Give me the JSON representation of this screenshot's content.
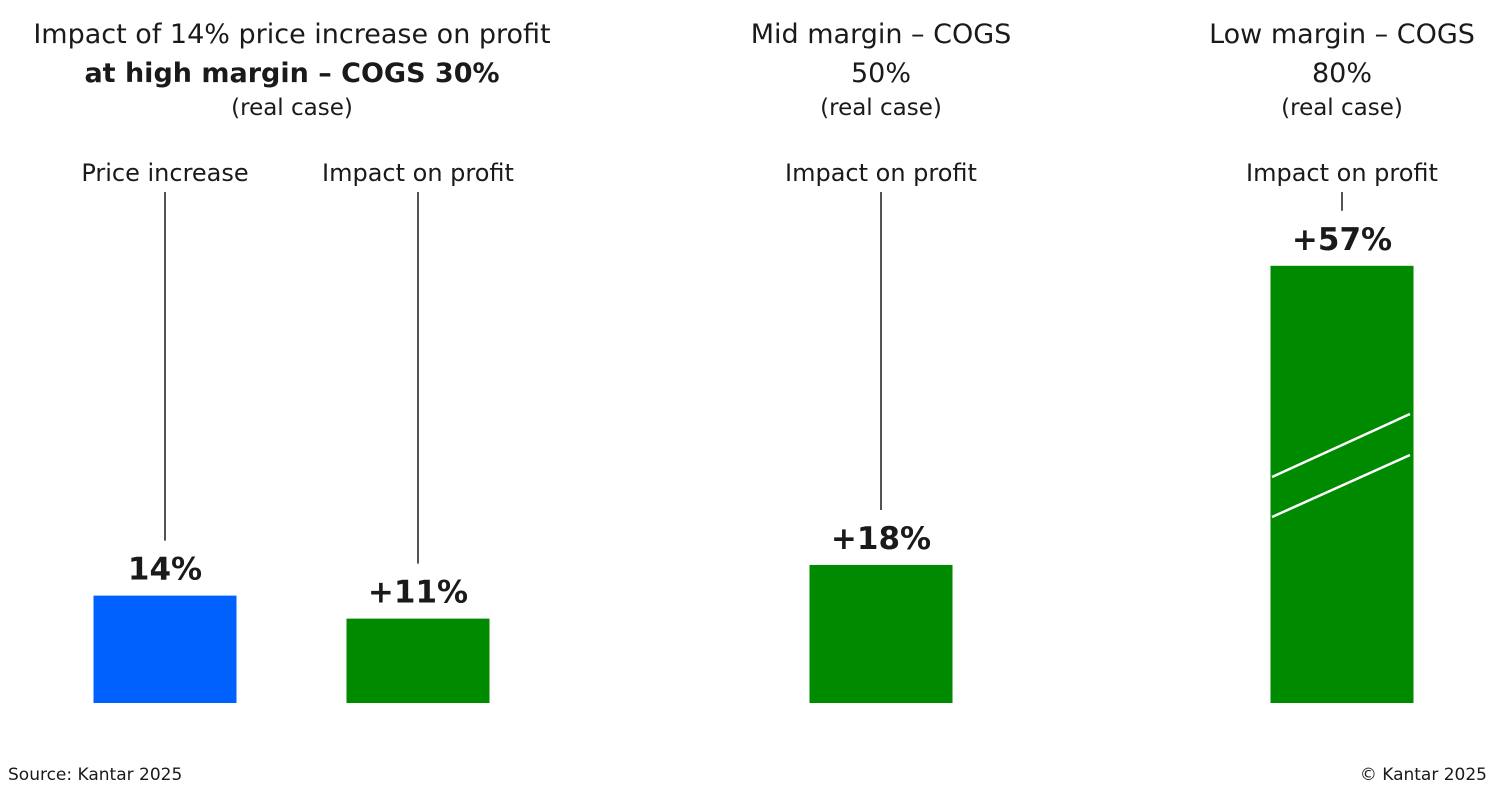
{
  "chart_data": {
    "type": "bar",
    "colors": {
      "price": "#0061FF",
      "profit": "#008A00"
    },
    "panels": [
      {
        "title_line1": "Impact of 14% price increase on profit",
        "title_line2": "at high margin – COGS 30%",
        "subtitle": "(real case)",
        "bars": [
          {
            "category": "Price increase",
            "value": 14,
            "label": "14%",
            "color": "#0061FF"
          },
          {
            "category": "Impact on profit",
            "value": 11,
            "label": "+11%",
            "color": "#008A00"
          }
        ]
      },
      {
        "title_line1": "Mid margin – COGS",
        "title_line2": "50%",
        "subtitle": "(real case)",
        "bars": [
          {
            "category": "Impact on profit",
            "value": 18,
            "label": "+18%",
            "color": "#008A00"
          }
        ]
      },
      {
        "title_line1": "Low margin – COGS",
        "title_line2": "80%",
        "subtitle": "(real case)",
        "bars": [
          {
            "category": "Impact on profit",
            "value": 57,
            "label": "+57%",
            "color": "#008A00",
            "axis_break": true
          }
        ]
      }
    ]
  },
  "footer": {
    "source": "Source: Kantar 2025",
    "copyright": "© Kantar 2025"
  }
}
